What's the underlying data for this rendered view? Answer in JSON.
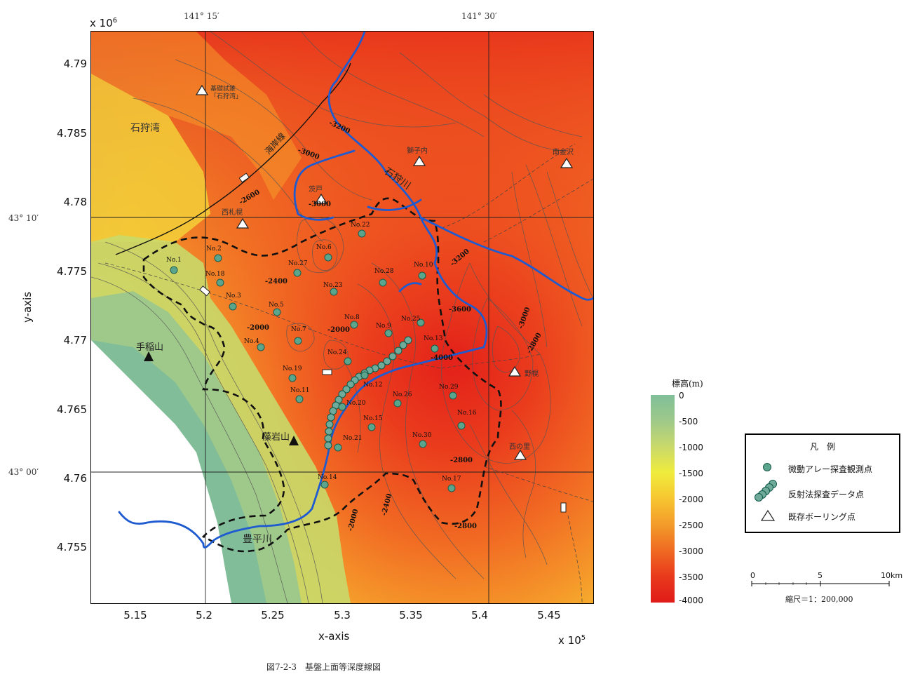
{
  "figure": {
    "caption": "図7-2-3　基盤上面等深度線図",
    "y_exponent": "x 10",
    "y_exponent_power": "6",
    "x_exponent": "x 10",
    "x_exponent_power": "5",
    "xlabel": "x-axis",
    "ylabel": "y-axis"
  },
  "axes": {
    "x_ticks": [
      "5.15",
      "5.2",
      "5.25",
      "5.3",
      "5.35",
      "5.4",
      "5.45"
    ],
    "y_ticks": [
      "4.79",
      "4.785",
      "4.78",
      "4.775",
      "4.77",
      "4.765",
      "4.76",
      "4.755"
    ],
    "x_range": [
      512000,
      548000
    ],
    "y_range": [
      4751000,
      4792000
    ]
  },
  "graticule": {
    "lon_labels": [
      "141° 15′",
      "141° 30′"
    ],
    "lat_labels": [
      "43° 10′",
      "43° 00′"
    ]
  },
  "colorbar": {
    "title": "標高(m)",
    "ticks": [
      "0",
      "-500",
      "-1000",
      "-1500",
      "-2000",
      "-2500",
      "-3000",
      "-3500",
      "-4000"
    ],
    "colors": [
      "#7fbf9a",
      "#9fc98a",
      "#c9d96a",
      "#f0ec3c",
      "#f7c531",
      "#f39b2a",
      "#ef6a22",
      "#e9391c",
      "#e01b18"
    ]
  },
  "place_labels": {
    "ishikari_bay": "石狩湾",
    "coastline": "海岸線",
    "ishikari_river": "石狩川",
    "toyohira_river": "豊平川",
    "teine": "手稲山",
    "moiwa": "藻岩山"
  },
  "boreholes": [
    {
      "name": "基礎試錐「石狩湾」"
    },
    {
      "name": "茨戸"
    },
    {
      "name": "西札幌"
    },
    {
      "name": "獅子内"
    },
    {
      "name": "南金沢"
    },
    {
      "name": "野幌"
    },
    {
      "name": "西の里"
    }
  ],
  "stations": [
    "No.1",
    "No.2",
    "No.3",
    "No.4",
    "No.5",
    "No.6",
    "No.7",
    "No.8",
    "No.9",
    "No.10",
    "No.11",
    "No.12",
    "No.13",
    "No.14",
    "No.15",
    "No.16",
    "No.17",
    "No.18",
    "No.19",
    "No.20",
    "No.21",
    "No.22",
    "No.23",
    "No.24",
    "No.25",
    "No.26",
    "No.27",
    "No.28",
    "No.29",
    "No.30"
  ],
  "contour_labels": [
    "-3200",
    "-3000",
    "-3000",
    "-2600",
    "-2400",
    "-2000",
    "-2000",
    "-3200",
    "-3600",
    "-4000",
    "-3000",
    "-2800",
    "-2800",
    "-2800",
    "-2400",
    "-2000"
  ],
  "legend": {
    "title": "凡　例",
    "items": [
      {
        "label": "微動アレー探査観測点"
      },
      {
        "label": "反射法探査データ点"
      },
      {
        "label": "既存ボーリング点"
      }
    ]
  },
  "scale_bar": {
    "labels": [
      "0",
      "5",
      "10km"
    ],
    "text": "縮尺＝1：200,000"
  }
}
